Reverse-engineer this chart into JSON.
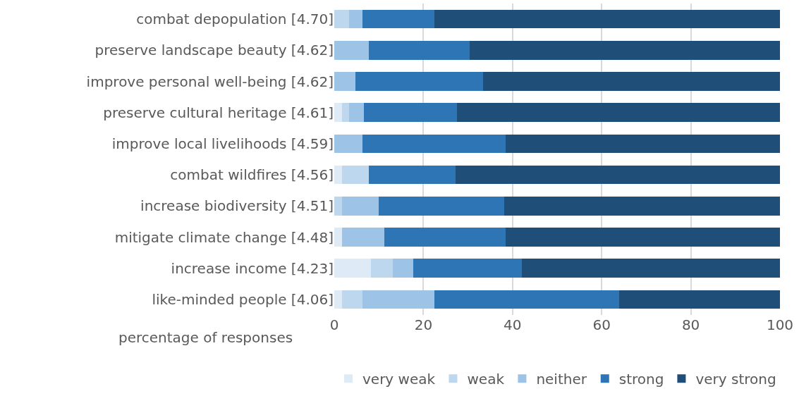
{
  "chart_data": {
    "type": "bar",
    "orientation": "horizontal",
    "stacked": true,
    "xlabel": "percentage of responses",
    "categories": [
      "combat depopulation [4.70]",
      "preserve landscape beauty [4.62]",
      "improve personal well-being [4.62]",
      "preserve cultural heritage [4.61]",
      "improve local livelihoods [4.59]",
      "combat wildfires [4.56]",
      "increase biodiversity [4.51]",
      "mitigate climate change [4.48]",
      "increase income [4.23]",
      "like-minded people [4.06]"
    ],
    "series": [
      {
        "name": "very weak",
        "color": "#deebf7",
        "values": [
          0,
          0,
          0,
          1.7,
          0,
          1.7,
          0,
          1.7,
          8.2,
          1.7
        ]
      },
      {
        "name": "weak",
        "color": "#bdd7ee",
        "values": [
          3.3,
          0,
          0,
          1.6,
          0,
          6.1,
          1.7,
          0,
          4.9,
          4.6
        ]
      },
      {
        "name": "neither",
        "color": "#9dc3e6",
        "values": [
          3.0,
          7.8,
          4.8,
          3.3,
          6.3,
          0,
          8.3,
          9.5,
          4.6,
          16.1
        ]
      },
      {
        "name": "strong",
        "color": "#2e75b6",
        "values": [
          16.1,
          22.6,
          28.6,
          21.0,
          32.1,
          19.4,
          28.1,
          27.2,
          24.4,
          41.6
        ]
      },
      {
        "name": "very strong",
        "color": "#1f4e79",
        "values": [
          77.6,
          69.6,
          66.6,
          72.4,
          61.6,
          72.8,
          61.9,
          61.6,
          57.9,
          36.0
        ]
      }
    ],
    "xlim": [
      0,
      100
    ],
    "xticks": [
      0,
      20,
      40,
      60,
      80,
      100
    ],
    "grid": "x",
    "legend": "bottom"
  }
}
